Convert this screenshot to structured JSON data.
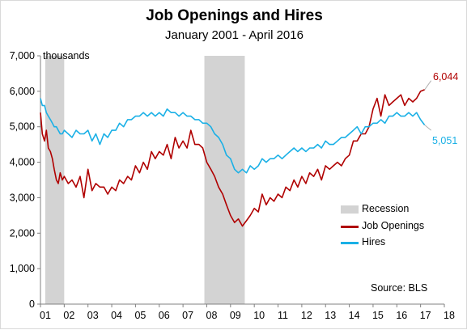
{
  "chart_data": {
    "type": "line",
    "title": "Job Openings and Hires",
    "subtitle": "January  2001 -  April 2016",
    "ylabel": "thousands",
    "source": "Source: BLS",
    "ylim": [
      0,
      7000
    ],
    "yticks": [
      0,
      1000,
      2000,
      3000,
      4000,
      5000,
      6000,
      7000
    ],
    "ytick_labels": [
      "0",
      "1,000",
      "2,000",
      "3,000",
      "4,000",
      "5,000",
      "6,000",
      "7,000"
    ],
    "xlim": [
      2001.0,
      2018.0
    ],
    "xticks": [
      2001,
      2002,
      2003,
      2004,
      2005,
      2006,
      2007,
      2008,
      2009,
      2010,
      2011,
      2012,
      2013,
      2014,
      2015,
      2016,
      2017,
      2018
    ],
    "xtick_labels": [
      "01",
      "02",
      "03",
      "04",
      "05",
      "06",
      "07",
      "08",
      "09",
      "10",
      "11",
      "12",
      "13",
      "14",
      "15",
      "16",
      "17",
      "18"
    ],
    "legend": {
      "placement": "right",
      "items": [
        {
          "label": "Recession",
          "color": "#d3d3d3"
        },
        {
          "label": "Job Openings",
          "color": "#b00000"
        },
        {
          "label": "Hires",
          "color": "#1ab0e6"
        }
      ]
    },
    "recessions": [
      [
        2001.2,
        2002.0
      ],
      [
        2007.9,
        2009.6
      ]
    ],
    "series": [
      {
        "name": "Job Openings",
        "color": "#b00000",
        "x": [
          2001.0,
          2001.08,
          2001.17,
          2001.25,
          2001.33,
          2001.42,
          2001.5,
          2001.58,
          2001.67,
          2001.75,
          2001.83,
          2001.92,
          2002.0,
          2002.17,
          2002.33,
          2002.5,
          2002.67,
          2002.83,
          2003.0,
          2003.17,
          2003.33,
          2003.5,
          2003.67,
          2003.83,
          2004.0,
          2004.17,
          2004.33,
          2004.5,
          2004.67,
          2004.83,
          2005.0,
          2005.17,
          2005.33,
          2005.5,
          2005.67,
          2005.83,
          2006.0,
          2006.17,
          2006.33,
          2006.5,
          2006.67,
          2006.83,
          2007.0,
          2007.17,
          2007.33,
          2007.5,
          2007.67,
          2007.83,
          2008.0,
          2008.17,
          2008.33,
          2008.5,
          2008.67,
          2008.83,
          2009.0,
          2009.17,
          2009.33,
          2009.5,
          2009.67,
          2009.83,
          2010.0,
          2010.17,
          2010.33,
          2010.5,
          2010.67,
          2010.83,
          2011.0,
          2011.17,
          2011.33,
          2011.5,
          2011.67,
          2011.83,
          2012.0,
          2012.17,
          2012.33,
          2012.5,
          2012.67,
          2012.83,
          2013.0,
          2013.17,
          2013.33,
          2013.5,
          2013.67,
          2013.83,
          2014.0,
          2014.17,
          2014.33,
          2014.5,
          2014.67,
          2014.83,
          2015.0,
          2015.17,
          2015.33,
          2015.5,
          2015.67,
          2015.83,
          2016.0,
          2016.17,
          2016.33,
          2016.5,
          2016.67,
          2016.83,
          2017.0,
          2017.17
        ],
        "values": [
          5400,
          4800,
          4600,
          4900,
          4400,
          4300,
          4100,
          3800,
          3500,
          3400,
          3700,
          3500,
          3600,
          3400,
          3500,
          3300,
          3600,
          3000,
          3800,
          3200,
          3400,
          3300,
          3300,
          3100,
          3300,
          3200,
          3500,
          3400,
          3600,
          3500,
          3900,
          3700,
          4000,
          3800,
          4300,
          4100,
          4300,
          4200,
          4500,
          4100,
          4700,
          4400,
          4600,
          4400,
          4900,
          4500,
          4500,
          4400,
          4000,
          3800,
          3600,
          3300,
          3100,
          2800,
          2500,
          2300,
          2400,
          2200,
          2350,
          2500,
          2700,
          2600,
          3100,
          2800,
          3000,
          2900,
          3100,
          3000,
          3300,
          3200,
          3500,
          3300,
          3600,
          3400,
          3700,
          3600,
          3800,
          3500,
          3900,
          3800,
          3900,
          4000,
          3900,
          4100,
          4200,
          4600,
          4600,
          4800,
          4800,
          5000,
          5500,
          5800,
          5300,
          5900,
          5600,
          5700,
          5800,
          5900,
          5600,
          5800,
          5700,
          5800,
          6000,
          6044
        ]
      },
      {
        "name": "Hires",
        "color": "#1ab0e6",
        "x": [
          2001.0,
          2001.08,
          2001.17,
          2001.25,
          2001.33,
          2001.42,
          2001.5,
          2001.58,
          2001.67,
          2001.75,
          2001.83,
          2001.92,
          2002.0,
          2002.17,
          2002.33,
          2002.5,
          2002.67,
          2002.83,
          2003.0,
          2003.17,
          2003.33,
          2003.5,
          2003.67,
          2003.83,
          2004.0,
          2004.17,
          2004.33,
          2004.5,
          2004.67,
          2004.83,
          2005.0,
          2005.17,
          2005.33,
          2005.5,
          2005.67,
          2005.83,
          2006.0,
          2006.17,
          2006.33,
          2006.5,
          2006.67,
          2006.83,
          2007.0,
          2007.17,
          2007.33,
          2007.5,
          2007.67,
          2007.83,
          2008.0,
          2008.17,
          2008.33,
          2008.5,
          2008.67,
          2008.83,
          2009.0,
          2009.17,
          2009.33,
          2009.5,
          2009.67,
          2009.83,
          2010.0,
          2010.17,
          2010.33,
          2010.5,
          2010.67,
          2010.83,
          2011.0,
          2011.17,
          2011.33,
          2011.5,
          2011.67,
          2011.83,
          2012.0,
          2012.17,
          2012.33,
          2012.5,
          2012.67,
          2012.83,
          2013.0,
          2013.17,
          2013.33,
          2013.5,
          2013.67,
          2013.83,
          2014.0,
          2014.17,
          2014.33,
          2014.5,
          2014.67,
          2014.83,
          2015.0,
          2015.17,
          2015.33,
          2015.5,
          2015.67,
          2015.83,
          2016.0,
          2016.17,
          2016.33,
          2016.5,
          2016.67,
          2016.83,
          2017.0,
          2017.17
        ],
        "values": [
          5800,
          5600,
          5600,
          5400,
          5300,
          5200,
          5100,
          5000,
          5000,
          4900,
          4800,
          4800,
          4900,
          4800,
          4700,
          4900,
          4800,
          4800,
          4900,
          4600,
          4800,
          4500,
          4800,
          4700,
          4900,
          4900,
          5100,
          5000,
          5200,
          5200,
          5300,
          5300,
          5400,
          5300,
          5400,
          5300,
          5400,
          5300,
          5500,
          5400,
          5400,
          5300,
          5400,
          5300,
          5300,
          5200,
          5200,
          5100,
          5100,
          5000,
          4800,
          4700,
          4500,
          4200,
          4100,
          3800,
          3700,
          3800,
          3700,
          3900,
          3800,
          3900,
          4100,
          4000,
          4100,
          4100,
          4200,
          4100,
          4200,
          4300,
          4400,
          4300,
          4400,
          4300,
          4400,
          4400,
          4500,
          4400,
          4600,
          4500,
          4500,
          4600,
          4700,
          4700,
          4800,
          4900,
          5000,
          4800,
          5000,
          5000,
          5100,
          5100,
          5200,
          5100,
          5300,
          5300,
          5400,
          5300,
          5300,
          5400,
          5300,
          5400,
          5200,
          5051
        ]
      }
    ],
    "last_value_labels": [
      {
        "series": "Job Openings",
        "text": "6,044",
        "color": "#b00000"
      },
      {
        "series": "Hires",
        "text": "5,051",
        "color": "#1ab0e6"
      }
    ]
  }
}
